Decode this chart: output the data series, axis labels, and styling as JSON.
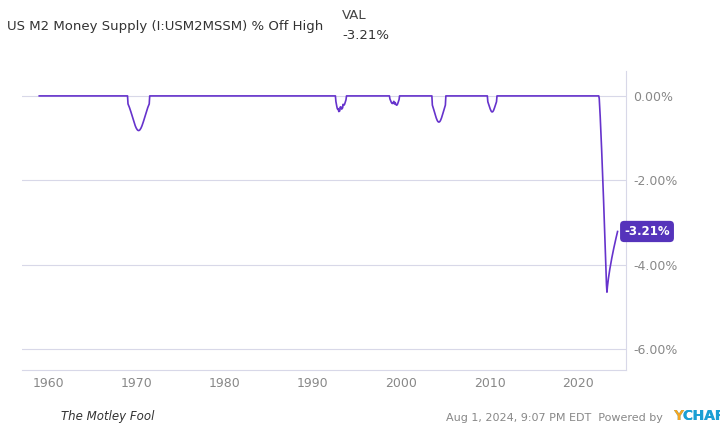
{
  "title_left": "US M2 Money Supply (I:USM2MSSM) % Off High",
  "title_right_label": "VAL",
  "title_right_val": "-3.21%",
  "line_color": "#6633CC",
  "background_color": "#ffffff",
  "grid_color": "#d8d8e8",
  "annotation_text": "-3.21%",
  "annotation_bg": "#5533BB",
  "annotation_fg": "#ffffff",
  "ylim": [
    -6.5,
    0.6
  ],
  "yticks": [
    0.0,
    -2.0,
    -4.0,
    -6.0
  ],
  "ytick_labels": [
    "0.00%",
    "-2.00%",
    "-4.00%",
    "-6.00%"
  ],
  "xticks": [
    1960,
    1970,
    1980,
    1990,
    2000,
    2010,
    2020
  ],
  "xlim_left": 1957,
  "xlim_right": 2025.5
}
